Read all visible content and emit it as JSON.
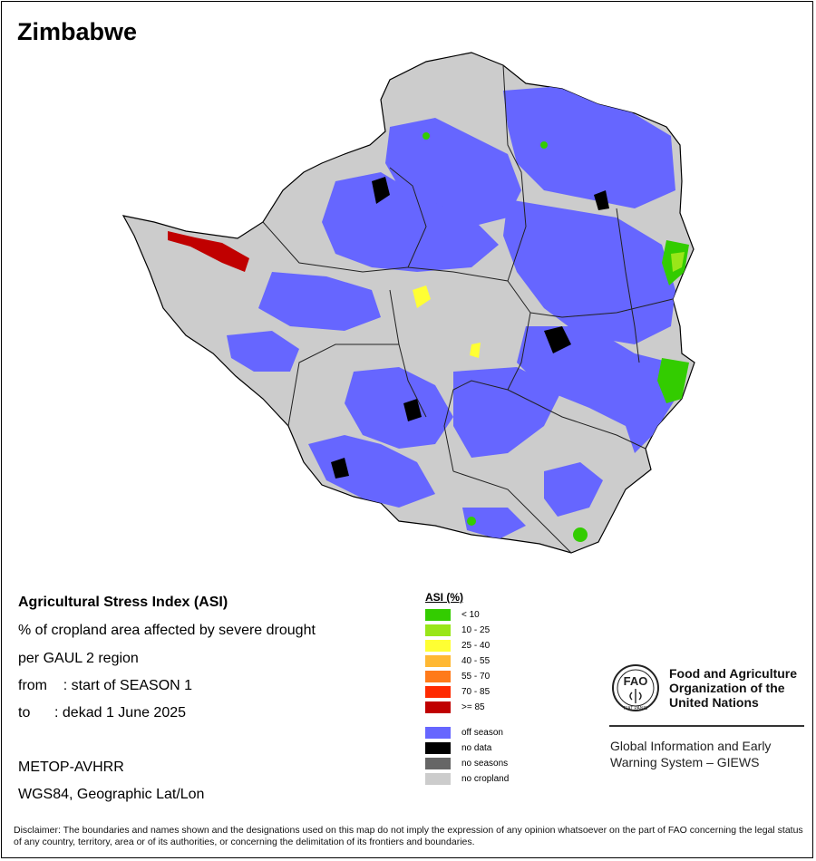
{
  "map": {
    "title": "Zimbabwe"
  },
  "info": {
    "heading": "Agricultural Stress Index (ASI)",
    "description": "% of cropland area affected by severe drought",
    "region_level": "per GAUL 2 region",
    "from_line": "from    : start of SEASON 1",
    "to_line": "to      : dekad 1 June 2025",
    "sensor": "METOP-AVHRR",
    "projection": "WGS84, Geographic Lat/Lon"
  },
  "legend": {
    "title": "ASI (%)",
    "items": [
      {
        "label": "< 10",
        "color": "#33cc00"
      },
      {
        "label": "10 - 25",
        "color": "#99e619"
      },
      {
        "label": "25 - 40",
        "color": "#ffff33"
      },
      {
        "label": "40 - 55",
        "color": "#ffb833"
      },
      {
        "label": "55 - 70",
        "color": "#ff7a1a"
      },
      {
        "label": "70 - 85",
        "color": "#ff2a00"
      },
      {
        "label": ">= 85",
        "color": "#c00000"
      },
      {
        "label": "off season",
        "color": "#6666ff"
      },
      {
        "label": "no data",
        "color": "#000000"
      },
      {
        "label": "no seasons",
        "color": "#666666"
      },
      {
        "label": "no cropland",
        "color": "#cccccc"
      }
    ]
  },
  "branding": {
    "organization": "Food and Agriculture Organization of the United Nations",
    "system": "Global Information and Early Warning System – GIEWS",
    "logo_text": "FAO",
    "logo_motto": "FIAT PANIS"
  },
  "disclaimer": "Disclaimer: The boundaries and names shown and the designations used on this map do not imply the expression of any opinion whatsoever on the part of FAO concerning the legal status of any country, territory, area or of its authorities, or concerning the delimitation of its frontiers and boundaries."
}
